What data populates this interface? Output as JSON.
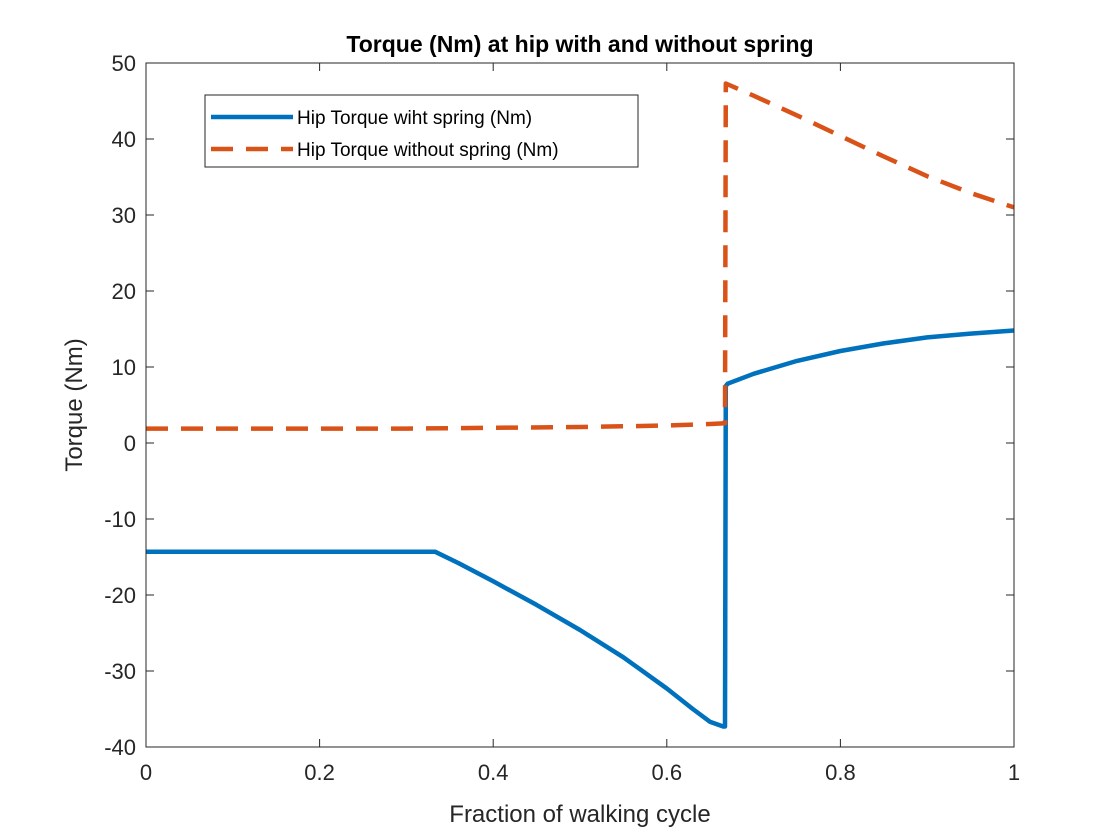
{
  "chart_data": {
    "type": "line",
    "title": "Torque (Nm) at hip with and without spring",
    "xlabel": "Fraction of walking cycle",
    "ylabel": "Torque (Nm)",
    "xlim": [
      0,
      1
    ],
    "ylim": [
      -40,
      50
    ],
    "xticks": [
      0,
      0.2,
      0.4,
      0.6,
      0.8,
      1
    ],
    "xtick_labels": [
      "0",
      "0.2",
      "0.4",
      "0.6",
      "0.8",
      "1"
    ],
    "yticks": [
      -40,
      -30,
      -20,
      -10,
      0,
      10,
      20,
      30,
      40,
      50
    ],
    "ytick_labels": [
      "-40",
      "-30",
      "-20",
      "-10",
      "0",
      "10",
      "20",
      "30",
      "40",
      "50"
    ],
    "grid": false,
    "legend_position": "top-left",
    "series": [
      {
        "name": "Hip Torque wiht spring (Nm)",
        "color": "#0072BD",
        "style": "solid",
        "x": [
          0,
          0.1,
          0.2,
          0.3,
          0.333,
          0.36,
          0.4,
          0.45,
          0.5,
          0.55,
          0.6,
          0.63,
          0.65,
          0.665,
          0.667,
          0.668,
          0.67,
          0.7,
          0.75,
          0.8,
          0.85,
          0.9,
          0.95,
          1.0
        ],
        "y": [
          -14.3,
          -14.3,
          -14.3,
          -14.3,
          -14.3,
          -15.8,
          -18.2,
          -21.3,
          -24.6,
          -28.2,
          -32.3,
          -35.0,
          -36.7,
          -37.3,
          -37.3,
          7.5,
          7.8,
          9.1,
          10.8,
          12.1,
          13.1,
          13.9,
          14.4,
          14.8
        ]
      },
      {
        "name": "Hip Torque without spring (Nm)",
        "color": "#D95319",
        "style": "dashed",
        "x": [
          0,
          0.1,
          0.2,
          0.3,
          0.4,
          0.5,
          0.55,
          0.6,
          0.65,
          0.667,
          0.668,
          0.7,
          0.75,
          0.8,
          0.85,
          0.9,
          0.95,
          1.0
        ],
        "y": [
          1.9,
          1.9,
          1.9,
          1.9,
          2.0,
          2.1,
          2.2,
          2.3,
          2.5,
          2.6,
          47.3,
          45.7,
          43.1,
          40.4,
          37.7,
          35.1,
          32.9,
          31.0
        ]
      }
    ]
  }
}
